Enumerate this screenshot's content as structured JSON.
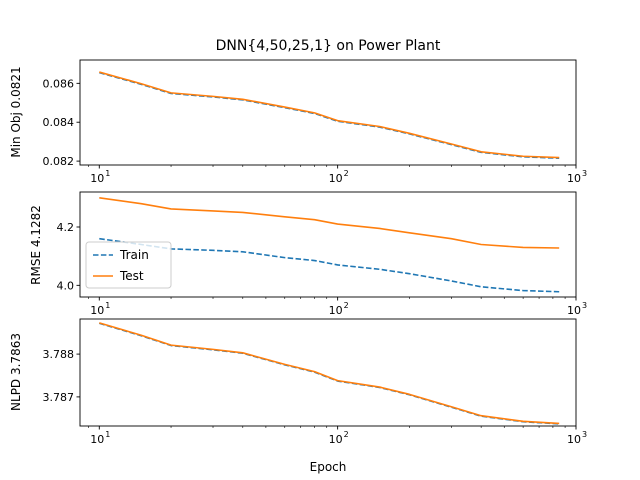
{
  "figure": {
    "title": "DNN{4,50,25,1} on Power Plant",
    "xlabel": "Epoch"
  },
  "colors": {
    "train": "#1f77b4",
    "test": "#ff7f0e",
    "axes": "#000000",
    "background": "#ffffff"
  },
  "legend": {
    "placement": "center-left (middle panel)",
    "entries": [
      {
        "label": "Train",
        "style": "dashed",
        "color": "#1f77b4"
      },
      {
        "label": "Test",
        "style": "solid",
        "color": "#ff7f0e"
      }
    ]
  },
  "chart_data": [
    {
      "type": "line",
      "xscale": "log",
      "xlim": [
        8.3,
        1000
      ],
      "ylim": [
        0.0818,
        0.0872
      ],
      "ylabel": "Min Obj 0.0821",
      "yticks": [
        0.082,
        0.084,
        0.086
      ],
      "ytick_labels": [
        "0.082",
        "0.084",
        "0.086"
      ],
      "xticks": [
        10,
        100,
        1000
      ],
      "xtick_labels": [
        "10",
        "10",
        "10"
      ],
      "xtick_exponents": [
        "1",
        "2",
        "3"
      ],
      "grid": false,
      "series": [
        {
          "name": "Train",
          "style": "dashed",
          "color": "#1f77b4",
          "x": [
            10,
            15,
            20,
            30,
            40,
            60,
            80,
            100,
            150,
            200,
            300,
            400,
            600,
            850
          ],
          "values": [
            0.08655,
            0.08595,
            0.08548,
            0.0853,
            0.08515,
            0.08475,
            0.08445,
            0.08405,
            0.08375,
            0.0834,
            0.08285,
            0.08245,
            0.08222,
            0.08215
          ]
        },
        {
          "name": "Test",
          "style": "solid",
          "color": "#ff7f0e",
          "x": [
            10,
            15,
            20,
            30,
            40,
            60,
            80,
            100,
            150,
            200,
            300,
            400,
            600,
            850
          ],
          "values": [
            0.08658,
            0.08598,
            0.08551,
            0.08533,
            0.08518,
            0.08478,
            0.08448,
            0.08408,
            0.08378,
            0.08343,
            0.08288,
            0.08248,
            0.08225,
            0.08218
          ]
        }
      ]
    },
    {
      "type": "line",
      "xscale": "log",
      "xlim": [
        8.3,
        1000
      ],
      "ylim": [
        3.96,
        4.32
      ],
      "ylabel": "RMSE 4.1282",
      "yticks": [
        4.0,
        4.2
      ],
      "ytick_labels": [
        "4.0",
        "4.2"
      ],
      "xticks": [
        10,
        100,
        1000
      ],
      "xtick_labels": [
        "10",
        "10",
        "10"
      ],
      "xtick_exponents": [
        "1",
        "2",
        "3"
      ],
      "grid": false,
      "series": [
        {
          "name": "Train",
          "style": "dashed",
          "color": "#1f77b4",
          "x": [
            10,
            15,
            20,
            30,
            40,
            60,
            80,
            100,
            150,
            200,
            300,
            400,
            600,
            850
          ],
          "values": [
            4.16,
            4.14,
            4.125,
            4.12,
            4.115,
            4.095,
            4.085,
            4.07,
            4.055,
            4.04,
            4.015,
            3.995,
            3.982,
            3.978
          ]
        },
        {
          "name": "Test",
          "style": "solid",
          "color": "#ff7f0e",
          "x": [
            10,
            15,
            20,
            30,
            40,
            60,
            80,
            100,
            150,
            200,
            300,
            400,
            600,
            850
          ],
          "values": [
            4.3,
            4.28,
            4.262,
            4.255,
            4.25,
            4.235,
            4.225,
            4.21,
            4.195,
            4.18,
            4.16,
            4.14,
            4.13,
            4.128
          ]
        }
      ]
    },
    {
      "type": "line",
      "xscale": "log",
      "xlim": [
        8.3,
        1000
      ],
      "ylim": [
        3.78632,
        3.78882
      ],
      "ylabel": "NLPD 3.7863",
      "yticks": [
        3.787,
        3.788
      ],
      "ytick_labels": [
        "3.787",
        "3.788"
      ],
      "xticks": [
        10,
        100,
        1000
      ],
      "xtick_labels": [
        "10",
        "10",
        "10"
      ],
      "xtick_exponents": [
        "1",
        "2",
        "3"
      ],
      "grid": false,
      "series": [
        {
          "name": "Train",
          "style": "dashed",
          "color": "#1f77b4",
          "x": [
            10,
            15,
            20,
            30,
            40,
            60,
            80,
            100,
            150,
            200,
            300,
            400,
            600,
            850
          ],
          "values": [
            3.78872,
            3.78843,
            3.7882,
            3.7881,
            3.78802,
            3.78775,
            3.78758,
            3.78737,
            3.78722,
            3.78705,
            3.78676,
            3.78655,
            3.78642,
            3.78637
          ]
        },
        {
          "name": "Test",
          "style": "solid",
          "color": "#ff7f0e",
          "x": [
            10,
            15,
            20,
            30,
            40,
            60,
            80,
            100,
            150,
            200,
            300,
            400,
            600,
            850
          ],
          "values": [
            3.78873,
            3.78844,
            3.78821,
            3.78811,
            3.78803,
            3.78776,
            3.78759,
            3.78738,
            3.78723,
            3.78706,
            3.78677,
            3.78656,
            3.78643,
            3.78638
          ]
        }
      ]
    }
  ]
}
